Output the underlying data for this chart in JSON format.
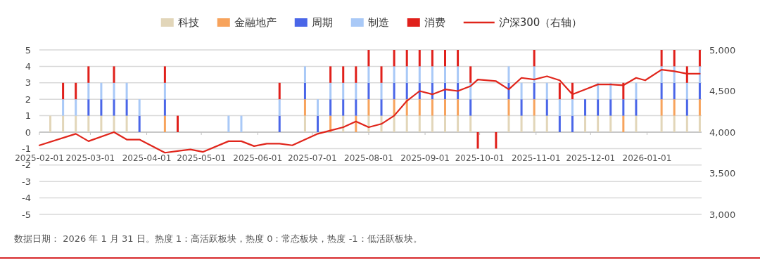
{
  "chart_data": {
    "type": "bar",
    "stacked": true,
    "x": [
      "2025-02-07",
      "2025-02-14",
      "2025-02-21",
      "2025-02-28",
      "2025-03-07",
      "2025-03-14",
      "2025-03-21",
      "2025-03-28",
      "2025-04-11",
      "2025-04-18",
      "2025-05-16",
      "2025-05-23",
      "2025-06-13",
      "2025-06-27",
      "2025-07-04",
      "2025-07-11",
      "2025-07-18",
      "2025-07-25",
      "2025-08-01",
      "2025-08-08",
      "2025-08-15",
      "2025-08-22",
      "2025-08-29",
      "2025-09-05",
      "2025-09-12",
      "2025-09-19",
      "2025-09-26",
      "2025-09-30",
      "2025-10-10",
      "2025-10-17",
      "2025-10-24",
      "2025-10-31",
      "2025-11-07",
      "2025-11-14",
      "2025-11-21",
      "2025-11-28",
      "2025-12-05",
      "2025-12-12",
      "2025-12-19",
      "2025-12-26",
      "2026-01-09",
      "2026-01-16",
      "2026-01-23",
      "2026-01-30"
    ],
    "series": [
      {
        "name": "科技",
        "color": "#e2d6b9",
        "values": [
          1,
          1,
          1,
          1,
          1,
          1,
          1,
          0,
          0,
          0,
          0,
          0,
          0,
          1,
          0,
          0,
          1,
          0,
          1,
          1,
          1,
          1,
          1,
          1,
          1,
          1,
          1,
          0,
          0,
          1,
          1,
          1,
          1,
          0,
          0,
          1,
          1,
          1,
          0,
          1,
          1,
          1,
          1,
          1
        ]
      },
      {
        "name": "金融地产",
        "color": "#f7a35c",
        "values": [
          0,
          0,
          0,
          0,
          0,
          0,
          0,
          0,
          1,
          0,
          0,
          0,
          0,
          1,
          0,
          1,
          0,
          1,
          1,
          0,
          1,
          1,
          1,
          1,
          1,
          1,
          0,
          0,
          0,
          1,
          0,
          1,
          0,
          0,
          0,
          0,
          0,
          0,
          1,
          0,
          1,
          1,
          0,
          1
        ]
      },
      {
        "name": "周期",
        "color": "#4a66e8",
        "values": [
          0,
          0,
          0,
          1,
          1,
          1,
          1,
          1,
          1,
          0,
          0,
          0,
          1,
          1,
          1,
          1,
          1,
          1,
          1,
          1,
          1,
          1,
          1,
          1,
          1,
          1,
          1,
          0,
          0,
          1,
          1,
          1,
          1,
          1,
          1,
          1,
          1,
          1,
          1,
          1,
          1,
          1,
          1,
          1
        ]
      },
      {
        "name": "制造",
        "color": "#a9c9f7",
        "values": [
          0,
          1,
          1,
          1,
          1,
          1,
          1,
          1,
          1,
          0,
          1,
          1,
          1,
          1,
          1,
          1,
          1,
          1,
          1,
          1,
          1,
          1,
          1,
          1,
          1,
          1,
          1,
          0,
          0,
          1,
          1,
          1,
          1,
          1,
          1,
          0,
          1,
          1,
          0,
          1,
          1,
          1,
          1,
          1
        ]
      },
      {
        "name": "消费",
        "color": "#e0201b",
        "values": [
          0,
          1,
          1,
          1,
          0,
          1,
          0,
          0,
          1,
          1,
          0,
          0,
          1,
          0,
          0,
          1,
          1,
          1,
          1,
          1,
          1,
          1,
          1,
          1,
          1,
          1,
          1,
          -1,
          -1,
          0,
          0,
          1,
          0,
          1,
          1,
          0,
          0,
          0,
          1,
          0,
          1,
          1,
          1,
          1
        ]
      },
      {
        "name": "沪深300（右轴）",
        "type": "line",
        "axis": "y2",
        "color": "#e0251b",
        "x": [
          "2025-02-01",
          "2025-02-21",
          "2025-02-28",
          "2025-03-14",
          "2025-03-21",
          "2025-03-28",
          "2025-04-11",
          "2025-04-18",
          "2025-04-25",
          "2025-05-02",
          "2025-05-16",
          "2025-05-23",
          "2025-05-30",
          "2025-06-06",
          "2025-06-13",
          "2025-06-20",
          "2025-06-27",
          "2025-07-04",
          "2025-07-11",
          "2025-07-18",
          "2025-07-25",
          "2025-08-01",
          "2025-08-08",
          "2025-08-15",
          "2025-08-22",
          "2025-08-29",
          "2025-09-05",
          "2025-09-12",
          "2025-09-19",
          "2025-09-26",
          "2025-09-30",
          "2025-10-10",
          "2025-10-17",
          "2025-10-24",
          "2025-10-31",
          "2025-11-07",
          "2025-11-14",
          "2025-11-21",
          "2025-11-28",
          "2025-12-05",
          "2025-12-12",
          "2025-12-19",
          "2025-12-26",
          "2025-12-31",
          "2026-01-09",
          "2026-01-16",
          "2026-01-23",
          "2026-01-30"
        ],
        "values": [
          3840,
          3980,
          3890,
          4000,
          3910,
          3910,
          3750,
          3770,
          3790,
          3760,
          3890,
          3890,
          3830,
          3860,
          3860,
          3840,
          3910,
          3980,
          4020,
          4060,
          4130,
          4060,
          4100,
          4200,
          4380,
          4500,
          4460,
          4520,
          4500,
          4560,
          4640,
          4620,
          4520,
          4660,
          4640,
          4680,
          4630,
          4460,
          4520,
          4580,
          4580,
          4570,
          4660,
          4630,
          4760,
          4740,
          4710,
          4710
        ]
      }
    ],
    "xlim": [
      "2025-02-01",
      "2026-01-31"
    ],
    "xticks": [
      "2025-02-01",
      "2025-03-01",
      "2025-04-01",
      "2025-05-01",
      "2025-06-01",
      "2025-07-01",
      "2025-08-01",
      "2025-09-01",
      "2025-10-01",
      "2025-11-01",
      "2025-12-01",
      "2026-01-01"
    ],
    "ylim": [
      -5,
      5
    ],
    "yticks": [
      -5,
      -4,
      -3,
      -2,
      -1,
      0,
      1,
      2,
      3,
      4,
      5
    ],
    "y2lim": [
      3000,
      5000
    ],
    "y2ticks": [
      {
        "value": 3000,
        "label": "3,000"
      },
      {
        "value": 3500,
        "label": "3,500"
      },
      {
        "value": 4000,
        "label": "4,000"
      },
      {
        "value": 4500,
        "label": "4,500"
      },
      {
        "value": 5000,
        "label": "5,000"
      }
    ],
    "grid": "y",
    "legend": "top",
    "annotations": [
      "数据日期： 2026 年 1 月 31 日。热度 1：高活跃板块，热度 0：常态板块，热度 -1：低活跃板块。"
    ]
  }
}
